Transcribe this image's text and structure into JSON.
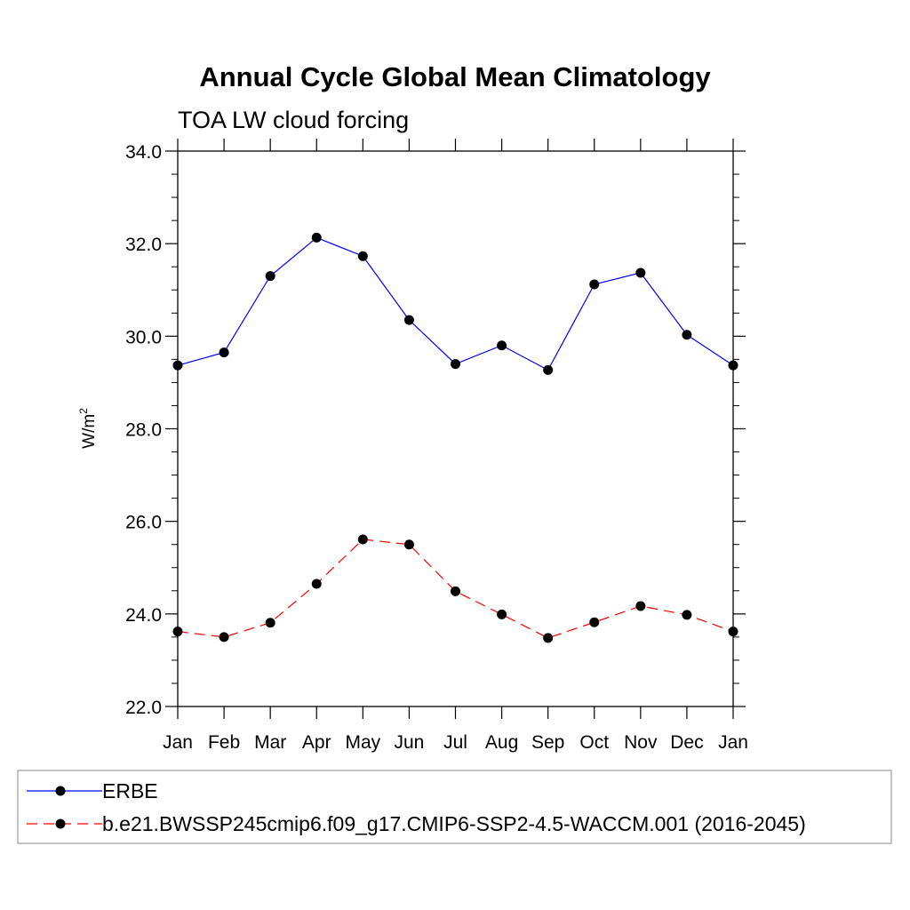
{
  "chart_data": {
    "type": "line",
    "title": "Annual Cycle Global Mean Climatology",
    "subtitle": "TOA LW cloud forcing",
    "ylabel": "W/m",
    "ylabel_sup": "2",
    "categories": [
      "Jan",
      "Feb",
      "Mar",
      "Apr",
      "May",
      "Jun",
      "Jul",
      "Aug",
      "Sep",
      "Oct",
      "Nov",
      "Dec",
      "Jan"
    ],
    "ylim": [
      22.0,
      34.0
    ],
    "yticks": [
      "22.0",
      "24.0",
      "26.0",
      "28.0",
      "30.0",
      "32.0",
      "34.0"
    ],
    "ytick_values": [
      22,
      24,
      26,
      28,
      30,
      32,
      34
    ],
    "grid": false,
    "legend_placement": "bottom",
    "series": [
      {
        "name": "ERBE",
        "color": "#0000ff",
        "dash": "solid",
        "values": [
          29.37,
          29.65,
          31.3,
          32.13,
          31.73,
          30.35,
          29.4,
          29.8,
          29.27,
          31.12,
          31.37,
          30.03,
          29.37
        ]
      },
      {
        "name": "b.e21.BWSSP245cmip6.f09_g17.CMIP6-SSP2-4.5-WACCM.001 (2016-2045)",
        "color": "#ff0000",
        "dash": "dashed",
        "values": [
          23.62,
          23.5,
          23.81,
          24.65,
          25.61,
          25.5,
          24.49,
          23.99,
          23.48,
          23.82,
          24.17,
          23.98,
          23.62
        ]
      }
    ]
  }
}
